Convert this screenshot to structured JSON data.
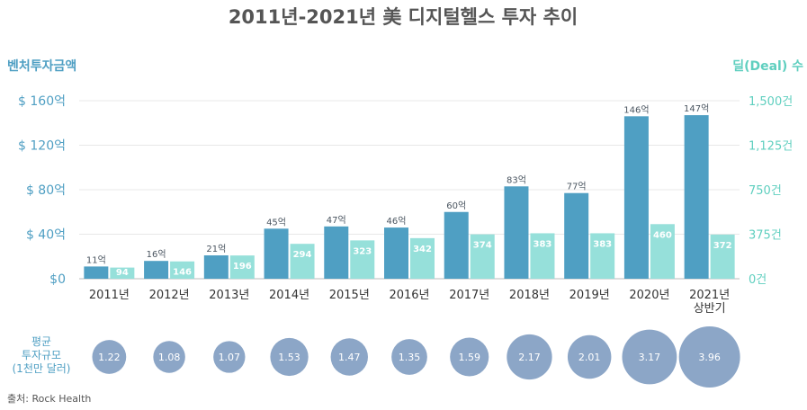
{
  "chart_data": {
    "type": "bar",
    "title": "2011년-2021년 美 디지털헬스 투자 추이",
    "categories": [
      "2011년",
      "2012년",
      "2013년",
      "2014년",
      "2015년",
      "2016년",
      "2017년",
      "2018년",
      "2019년",
      "2020년",
      "2021년\n상반기"
    ],
    "left_axis": {
      "label": "벤처투자금액",
      "ticks": [
        "$ 160억",
        "$ 120억",
        "$ 80억",
        "$ 40억",
        "$0"
      ],
      "ylim": [
        0,
        160
      ]
    },
    "right_axis": {
      "label": "딜(Deal) 수",
      "ticks": [
        "1,500건",
        "1,125건",
        "750건",
        "375건",
        "0건"
      ],
      "ylim": [
        0,
        1500
      ]
    },
    "series": [
      {
        "axis": "left",
        "color": "#4f9fc3",
        "values": [
          11,
          16,
          21,
          45,
          47,
          46,
          60,
          83,
          77,
          146,
          147
        ],
        "labels": [
          "11억",
          "16억",
          "21억",
          "45억",
          "47억",
          "46억",
          "60억",
          "83억",
          "77억",
          "146억",
          "147억"
        ]
      },
      {
        "axis": "right",
        "color": "#96e0da",
        "values": [
          94,
          146,
          196,
          294,
          323,
          342,
          374,
          383,
          383,
          460,
          372
        ],
        "labels": [
          "94",
          "146",
          "196",
          "294",
          "323",
          "342",
          "374",
          "383",
          "383",
          "460",
          "372"
        ]
      }
    ],
    "bubbles": {
      "label": "평균\n투자규모\n(1천만 달러)",
      "color": "#8ca6c7",
      "values": [
        1.22,
        1.08,
        1.07,
        1.53,
        1.47,
        1.35,
        1.59,
        2.17,
        2.01,
        3.17,
        3.96
      ],
      "labels": [
        "1.22",
        "1.08",
        "1.07",
        "1.53",
        "1.47",
        "1.35",
        "1.59",
        "2.17",
        "2.01",
        "3.17",
        "3.96"
      ]
    },
    "source": "출처: Rock Health",
    "grid": true,
    "legend": "none"
  }
}
